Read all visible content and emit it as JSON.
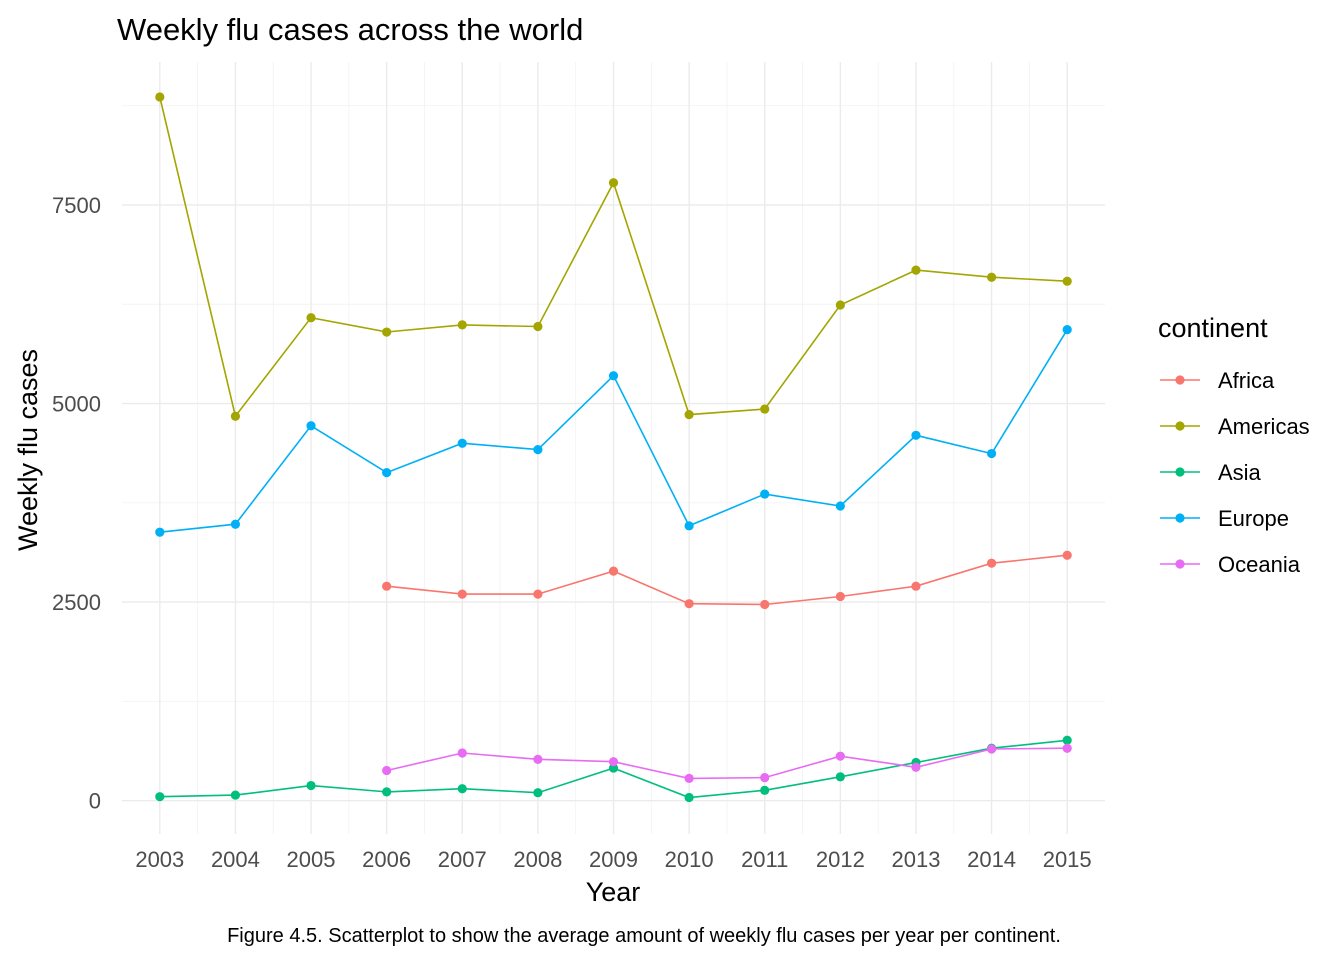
{
  "chart_data": {
    "type": "line",
    "title": "Weekly flu cases across the world",
    "xlabel": "Year",
    "ylabel": "Weekly flu cases",
    "caption": "Figure 4.5. Scatterplot to show the average amount of weekly flu cases per year per continent.",
    "x": [
      2003,
      2004,
      2005,
      2006,
      2007,
      2008,
      2009,
      2010,
      2011,
      2012,
      2013,
      2014,
      2015
    ],
    "xlim": [
      2002.5,
      2015.5
    ],
    "ylim": [
      -420,
      9300
    ],
    "yticks": [
      0,
      2500,
      5000,
      7500
    ],
    "grid": true,
    "legend": {
      "title": "continent",
      "position": "right"
    },
    "series": [
      {
        "name": "Africa",
        "color": "#F8766D",
        "values": [
          null,
          null,
          null,
          2700,
          2600,
          2600,
          2890,
          2480,
          2470,
          2570,
          2700,
          2990,
          3090
        ]
      },
      {
        "name": "Americas",
        "color": "#A3A500",
        "values": [
          8860,
          4840,
          6080,
          5900,
          5990,
          5970,
          7780,
          4860,
          4930,
          6240,
          6680,
          6590,
          6540
        ]
      },
      {
        "name": "Asia",
        "color": "#00BF7D",
        "values": [
          50,
          70,
          190,
          110,
          150,
          100,
          410,
          40,
          130,
          300,
          480,
          660,
          760
        ]
      },
      {
        "name": "Europe",
        "color": "#00B0F6",
        "values": [
          3380,
          3480,
          4720,
          4130,
          4500,
          4420,
          5350,
          3460,
          3860,
          3710,
          4600,
          4370,
          5930
        ]
      },
      {
        "name": "Oceania",
        "color": "#E76BF3",
        "values": [
          null,
          null,
          null,
          380,
          600,
          520,
          490,
          280,
          290,
          560,
          420,
          650,
          660
        ]
      }
    ]
  }
}
